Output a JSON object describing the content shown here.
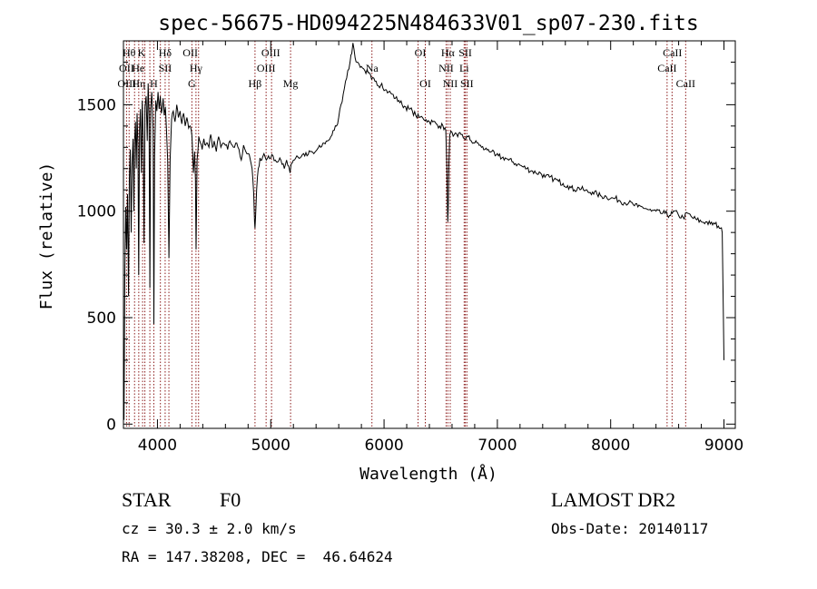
{
  "chart_data": {
    "type": "line",
    "title": "spec-56675-HD094225N484633V01_sp07-230.fits",
    "xlabel": "Wavelength (Å)",
    "ylabel": "Flux (relative)",
    "xlim": [
      3700,
      9100
    ],
    "ylim": [
      -20,
      1800
    ],
    "xticks": [
      4000,
      5000,
      6000,
      7000,
      8000,
      9000
    ],
    "yticks": [
      0,
      500,
      1000,
      1500
    ],
    "grid": false,
    "line_color": "#000000",
    "marker_color": "#8b1a1a",
    "series": [
      {
        "points": [
          [
            3700,
            180
          ],
          [
            3705,
            20
          ],
          [
            3712,
            700
          ],
          [
            3720,
            1020
          ],
          [
            3728,
            820
          ],
          [
            3736,
            1080
          ],
          [
            3745,
            600
          ],
          [
            3752,
            1150
          ],
          [
            3760,
            1290
          ],
          [
            3768,
            900
          ],
          [
            3775,
            1210
          ],
          [
            3785,
            1340
          ],
          [
            3792,
            1000
          ],
          [
            3798,
            1320
          ],
          [
            3806,
            1420
          ],
          [
            3813,
            1200
          ],
          [
            3820,
            1460
          ],
          [
            3828,
            1300
          ],
          [
            3835,
            700
          ],
          [
            3842,
            1380
          ],
          [
            3850,
            1480
          ],
          [
            3858,
            1180
          ],
          [
            3866,
            1520
          ],
          [
            3874,
            1350
          ],
          [
            3882,
            850
          ],
          [
            3890,
            1490
          ],
          [
            3900,
            1540
          ],
          [
            3910,
            1330
          ],
          [
            3918,
            1600
          ],
          [
            3926,
            1450
          ],
          [
            3933,
            640
          ],
          [
            3940,
            1480
          ],
          [
            3950,
            1560
          ],
          [
            3962,
            1380
          ],
          [
            3968,
            470
          ],
          [
            3975,
            1260
          ],
          [
            3985,
            1520
          ],
          [
            3995,
            1470
          ],
          [
            4005,
            1560
          ],
          [
            4015,
            1480
          ],
          [
            4025,
            1540
          ],
          [
            4035,
            1460
          ],
          [
            4050,
            1530
          ],
          [
            4060,
            1450
          ],
          [
            4070,
            1490
          ],
          [
            4080,
            1380
          ],
          [
            4090,
            1240
          ],
          [
            4101,
            780
          ],
          [
            4112,
            1240
          ],
          [
            4125,
            1430
          ],
          [
            4140,
            1470
          ],
          [
            4155,
            1420
          ],
          [
            4170,
            1500
          ],
          [
            4185,
            1440
          ],
          [
            4200,
            1470
          ],
          [
            4215,
            1410
          ],
          [
            4230,
            1460
          ],
          [
            4245,
            1400
          ],
          [
            4260,
            1440
          ],
          [
            4275,
            1390
          ],
          [
            4290,
            1400
          ],
          [
            4305,
            1350
          ],
          [
            4318,
            1180
          ],
          [
            4328,
            1280
          ],
          [
            4335,
            1150
          ],
          [
            4341,
            820
          ],
          [
            4350,
            1240
          ],
          [
            4365,
            1350
          ],
          [
            4380,
            1320
          ],
          [
            4395,
            1290
          ],
          [
            4410,
            1340
          ],
          [
            4425,
            1310
          ],
          [
            4440,
            1320
          ],
          [
            4455,
            1300
          ],
          [
            4470,
            1360
          ],
          [
            4485,
            1300
          ],
          [
            4500,
            1330
          ],
          [
            4520,
            1280
          ],
          [
            4540,
            1350
          ],
          [
            4560,
            1300
          ],
          [
            4580,
            1320
          ],
          [
            4600,
            1310
          ],
          [
            4620,
            1290
          ],
          [
            4640,
            1330
          ],
          [
            4660,
            1310
          ],
          [
            4680,
            1300
          ],
          [
            4700,
            1320
          ],
          [
            4720,
            1290
          ],
          [
            4740,
            1240
          ],
          [
            4760,
            1310
          ],
          [
            4780,
            1280
          ],
          [
            4800,
            1270
          ],
          [
            4820,
            1240
          ],
          [
            4835,
            1200
          ],
          [
            4850,
            1080
          ],
          [
            4857,
            950
          ],
          [
            4861,
            920
          ],
          [
            4866,
            970
          ],
          [
            4875,
            1100
          ],
          [
            4890,
            1200
          ],
          [
            4905,
            1250
          ],
          [
            4920,
            1240
          ],
          [
            4940,
            1270
          ],
          [
            4960,
            1240
          ],
          [
            4980,
            1260
          ],
          [
            5000,
            1250
          ],
          [
            5020,
            1260
          ],
          [
            5040,
            1240
          ],
          [
            5060,
            1230
          ],
          [
            5080,
            1250
          ],
          [
            5100,
            1220
          ],
          [
            5120,
            1200
          ],
          [
            5140,
            1240
          ],
          [
            5160,
            1210
          ],
          [
            5170,
            1180
          ],
          [
            5180,
            1220
          ],
          [
            5200,
            1240
          ],
          [
            5230,
            1260
          ],
          [
            5260,
            1250
          ],
          [
            5290,
            1270
          ],
          [
            5320,
            1260
          ],
          [
            5350,
            1280
          ],
          [
            5380,
            1270
          ],
          [
            5410,
            1290
          ],
          [
            5440,
            1300
          ],
          [
            5470,
            1320
          ],
          [
            5500,
            1330
          ],
          [
            5530,
            1350
          ],
          [
            5560,
            1380
          ],
          [
            5580,
            1400
          ],
          [
            5600,
            1440
          ],
          [
            5620,
            1500
          ],
          [
            5640,
            1550
          ],
          [
            5660,
            1610
          ],
          [
            5680,
            1660
          ],
          [
            5700,
            1700
          ],
          [
            5715,
            1740
          ],
          [
            5725,
            1790
          ],
          [
            5735,
            1760
          ],
          [
            5745,
            1720
          ],
          [
            5760,
            1700
          ],
          [
            5780,
            1690
          ],
          [
            5800,
            1680
          ],
          [
            5830,
            1660
          ],
          [
            5860,
            1650
          ],
          [
            5890,
            1620
          ],
          [
            5920,
            1610
          ],
          [
            5950,
            1590
          ],
          [
            5980,
            1600
          ],
          [
            6010,
            1570
          ],
          [
            6040,
            1560
          ],
          [
            6070,
            1550
          ],
          [
            6100,
            1530
          ],
          [
            6130,
            1520
          ],
          [
            6160,
            1500
          ],
          [
            6190,
            1490
          ],
          [
            6220,
            1480
          ],
          [
            6250,
            1470
          ],
          [
            6280,
            1450
          ],
          [
            6310,
            1440
          ],
          [
            6340,
            1440
          ],
          [
            6370,
            1430
          ],
          [
            6400,
            1420
          ],
          [
            6430,
            1420
          ],
          [
            6460,
            1410
          ],
          [
            6490,
            1400
          ],
          [
            6520,
            1400
          ],
          [
            6545,
            1380
          ],
          [
            6555,
            1200
          ],
          [
            6560,
            1000
          ],
          [
            6563,
            950
          ],
          [
            6567,
            1020
          ],
          [
            6572,
            1220
          ],
          [
            6580,
            1360
          ],
          [
            6600,
            1370
          ],
          [
            6620,
            1360
          ],
          [
            6650,
            1350
          ],
          [
            6680,
            1360
          ],
          [
            6710,
            1340
          ],
          [
            6740,
            1350
          ],
          [
            6770,
            1330
          ],
          [
            6800,
            1320
          ],
          [
            6830,
            1320
          ],
          [
            6860,
            1300
          ],
          [
            6890,
            1290
          ],
          [
            6920,
            1290
          ],
          [
            6950,
            1280
          ],
          [
            6980,
            1260
          ],
          [
            7010,
            1260
          ],
          [
            7040,
            1250
          ],
          [
            7070,
            1250
          ],
          [
            7100,
            1240
          ],
          [
            7140,
            1230
          ],
          [
            7180,
            1220
          ],
          [
            7220,
            1210
          ],
          [
            7260,
            1200
          ],
          [
            7300,
            1190
          ],
          [
            7340,
            1180
          ],
          [
            7380,
            1180
          ],
          [
            7420,
            1160
          ],
          [
            7460,
            1160
          ],
          [
            7500,
            1150
          ],
          [
            7540,
            1140
          ],
          [
            7580,
            1130
          ],
          [
            7620,
            1120
          ],
          [
            7650,
            1110
          ],
          [
            7680,
            1100
          ],
          [
            7720,
            1110
          ],
          [
            7760,
            1100
          ],
          [
            7800,
            1090
          ],
          [
            7840,
            1090
          ],
          [
            7880,
            1080
          ],
          [
            7920,
            1070
          ],
          [
            7960,
            1070
          ],
          [
            8000,
            1060
          ],
          [
            8040,
            1060
          ],
          [
            8080,
            1050
          ],
          [
            8120,
            1040
          ],
          [
            8160,
            1040
          ],
          [
            8200,
            1030
          ],
          [
            8240,
            1020
          ],
          [
            8280,
            1020
          ],
          [
            8320,
            1010
          ],
          [
            8360,
            1000
          ],
          [
            8400,
            1000
          ],
          [
            8440,
            990
          ],
          [
            8480,
            990
          ],
          [
            8520,
            980
          ],
          [
            8545,
            990
          ],
          [
            8560,
            1000
          ],
          [
            8600,
            980
          ],
          [
            8640,
            970
          ],
          [
            8680,
            990
          ],
          [
            8720,
            970
          ],
          [
            8760,
            960
          ],
          [
            8800,
            950
          ],
          [
            8840,
            950
          ],
          [
            8880,
            940
          ],
          [
            8920,
            940
          ],
          [
            8950,
            930
          ],
          [
            8970,
            920
          ],
          [
            8985,
            900
          ],
          [
            8995,
            500
          ],
          [
            9000,
            300
          ]
        ]
      }
    ],
    "lines": [
      {
        "row": 0,
        "labels": [
          {
            "text": "Hθ",
            "x": 3750
          },
          {
            "text": "K",
            "x": 3860
          },
          {
            "text": "Hδ",
            "x": 4068
          },
          {
            "text": "OII",
            "x": 4290
          },
          {
            "text": "OIII",
            "x": 5000
          },
          {
            "text": "OI",
            "x": 6320
          },
          {
            "text": "Hα",
            "x": 6563
          },
          {
            "text": "SII",
            "x": 6717
          },
          {
            "text": "CaII",
            "x": 8545
          }
        ]
      },
      {
        "row": 1,
        "labels": [
          {
            "text": "OII",
            "x": 3727
          },
          {
            "text": "He",
            "x": 3830
          },
          {
            "text": "SII",
            "x": 4068
          },
          {
            "text": "Hγ",
            "x": 4340
          },
          {
            "text": "OIII",
            "x": 4959
          },
          {
            "text": "Na",
            "x": 5893
          },
          {
            "text": "NII",
            "x": 6548
          },
          {
            "text": "Li",
            "x": 6707
          },
          {
            "text": "CaII",
            "x": 8498
          }
        ]
      },
      {
        "row": 2,
        "labels": [
          {
            "text": "OIII",
            "x": 3730
          },
          {
            "text": "Hη",
            "x": 3835
          },
          {
            "text": "H",
            "x": 3968
          },
          {
            "text": "G",
            "x": 4304
          },
          {
            "text": "Hβ",
            "x": 4861
          },
          {
            "text": "Mg",
            "x": 5175
          },
          {
            "text": "OI",
            "x": 6364
          },
          {
            "text": "NII",
            "x": 6584
          },
          {
            "text": "SII",
            "x": 6731
          },
          {
            "text": "CaII",
            "x": 8662
          }
        ]
      }
    ],
    "line_positions": [
      3727,
      3750,
      3798,
      3835,
      3869,
      3889,
      3933,
      3968,
      4026,
      4068,
      4101,
      4304,
      4340,
      4363,
      4861,
      4959,
      5007,
      5175,
      5893,
      6300,
      6364,
      6548,
      6563,
      6584,
      6707,
      6717,
      6731,
      8498,
      8542,
      8662
    ]
  },
  "info": {
    "object_class": "STAR",
    "subclass": "F0",
    "survey": "LAMOST DR2",
    "redshift": "cz = 30.3 ± 2.0 km/s",
    "obs_date": "Obs-Date: 20140117",
    "coords": "RA = 147.38208, DEC =  46.64624"
  }
}
